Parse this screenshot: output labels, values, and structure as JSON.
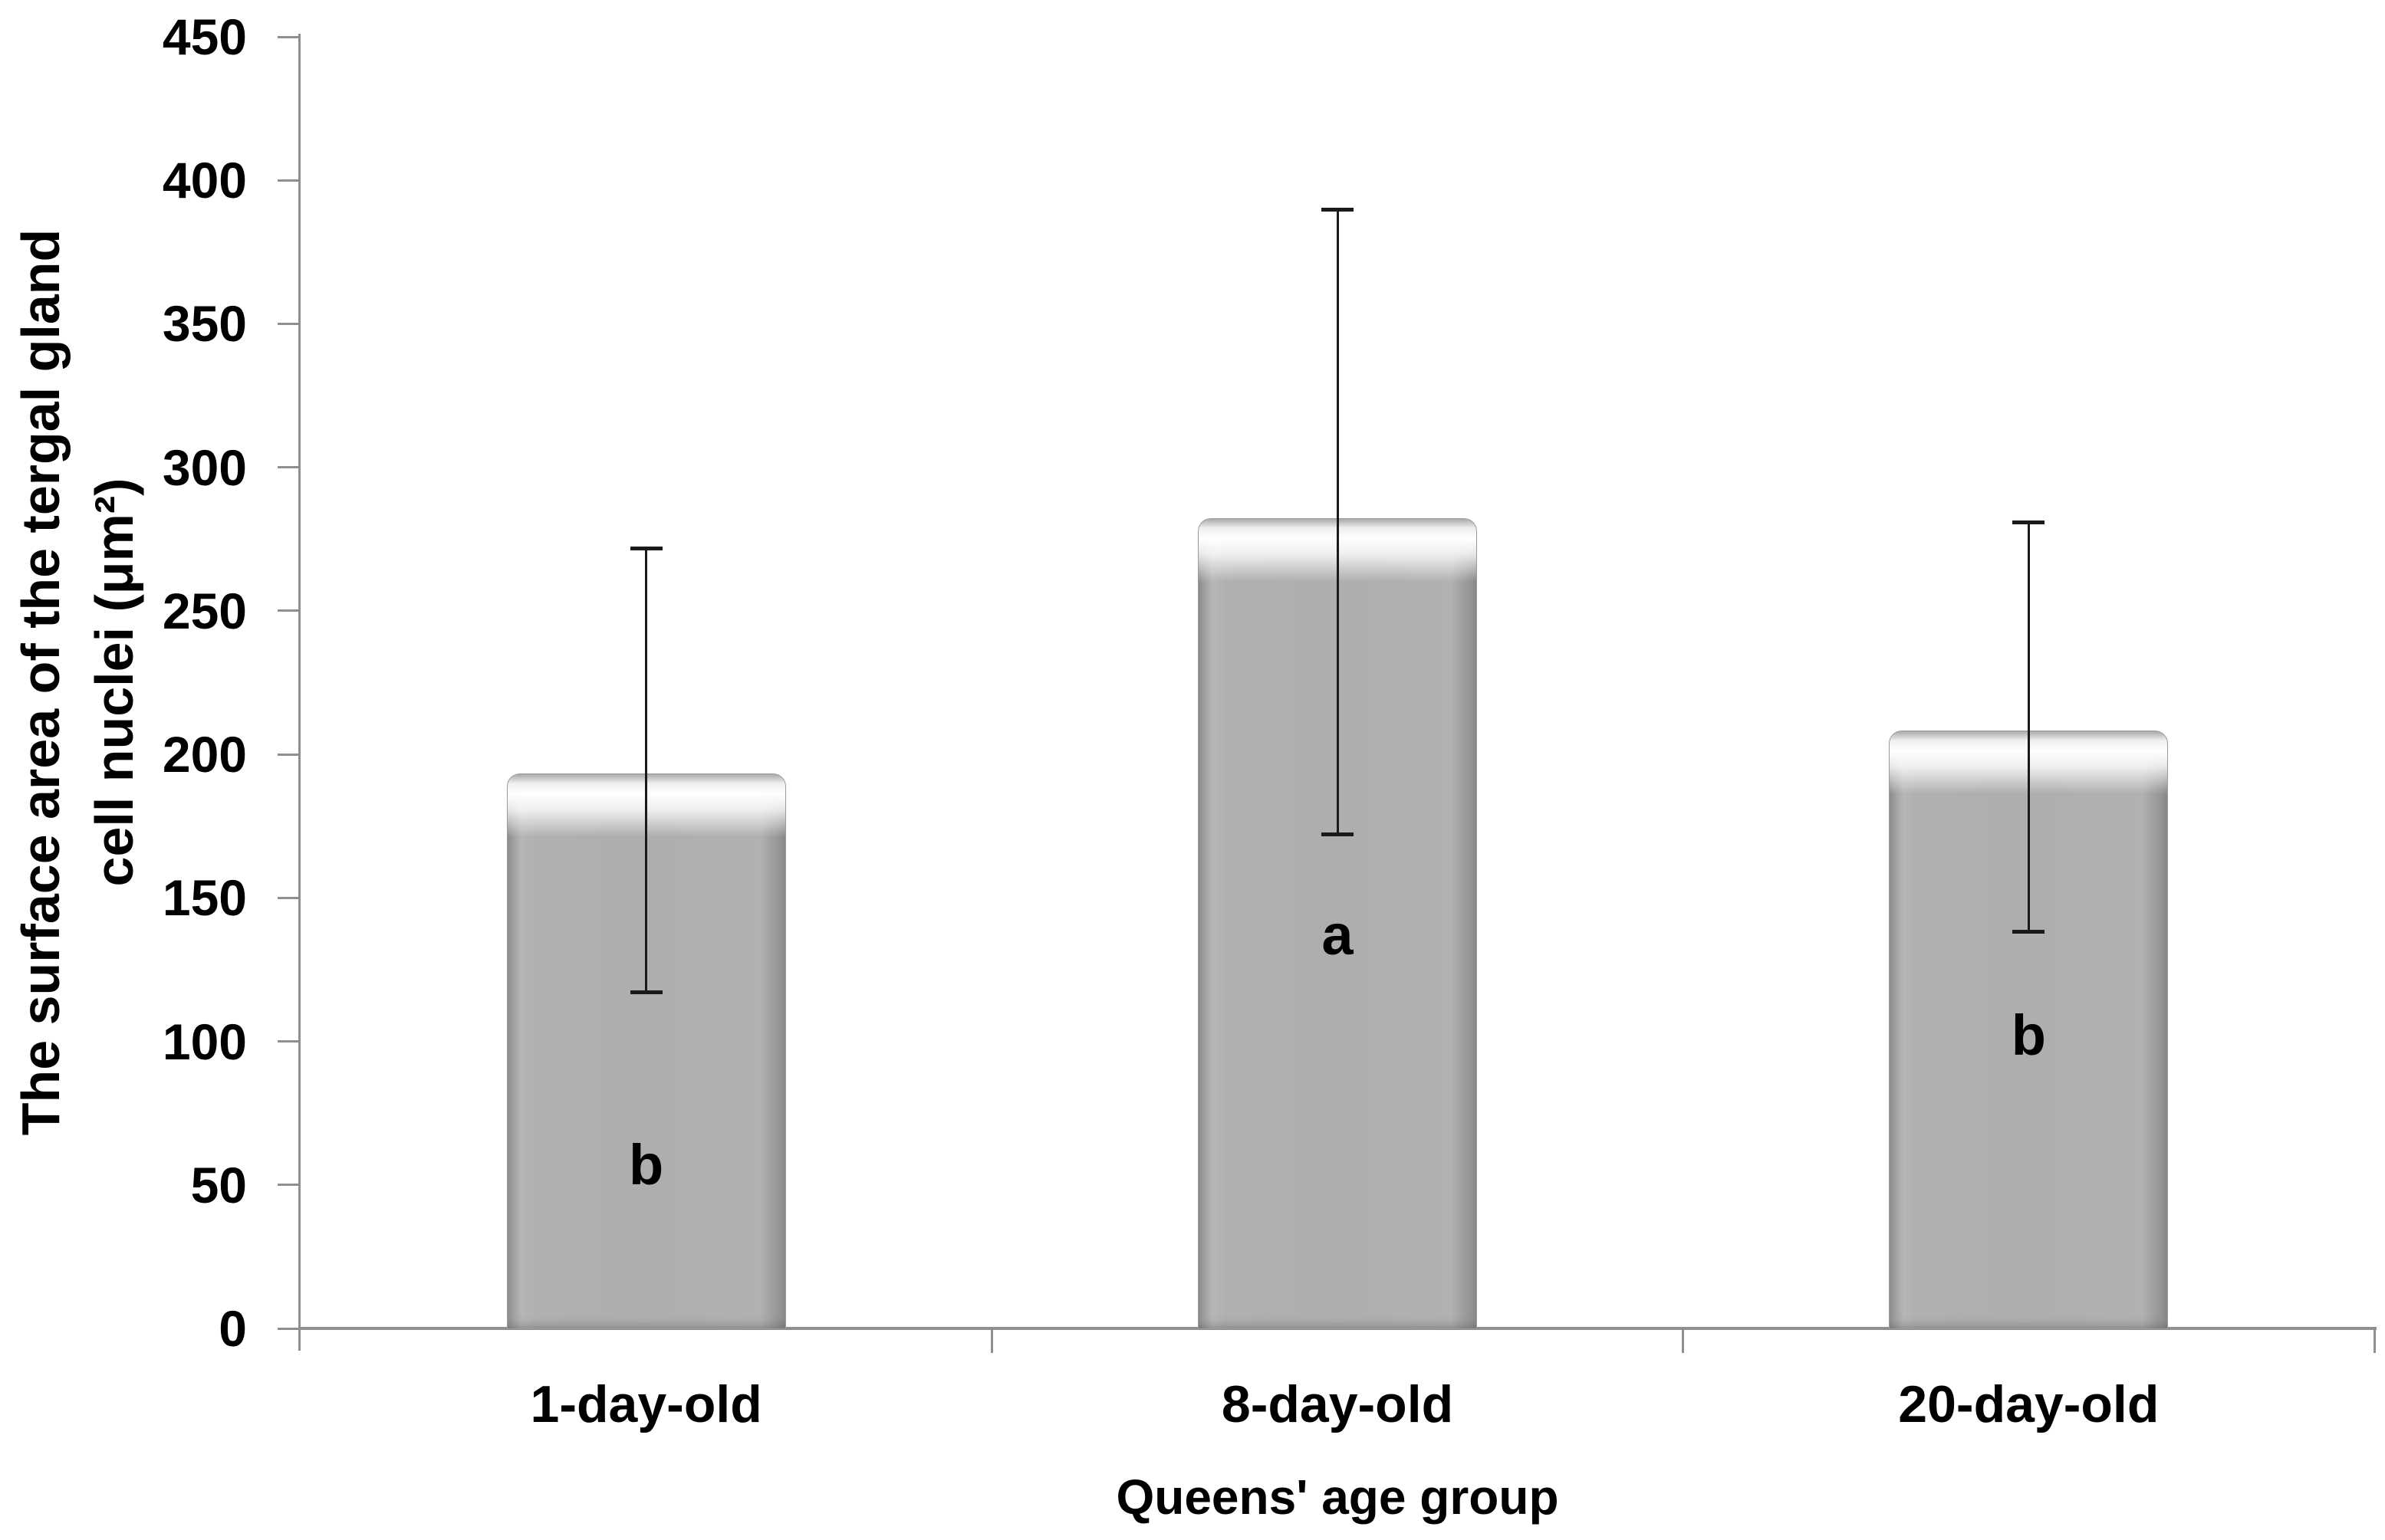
{
  "chart_data": {
    "type": "bar",
    "title": "",
    "xlabel": "Queens' age group",
    "ylabel_lines": [
      "The surface area of the tergal gland",
      "cell nuclei (μm²)"
    ],
    "categories": [
      "1-day-old",
      "8-day-old",
      "20-day-old"
    ],
    "values": [
      193,
      282,
      208
    ],
    "error_low": [
      117,
      172,
      138
    ],
    "error_high": [
      272,
      390,
      281
    ],
    "sig_letters": [
      "b",
      "a",
      "b"
    ],
    "sig_letter_y": [
      57,
      137,
      102
    ],
    "ylim": [
      0,
      450
    ],
    "yticks": [
      0,
      50,
      100,
      150,
      200,
      250,
      300,
      350,
      400,
      450
    ],
    "ytick_step": 50,
    "grid": false,
    "legend": null,
    "colors": {
      "bar_fill": "#aeaeae",
      "bar_edge": "#8f8f8f",
      "axis": "#8f8f8f",
      "text": "#000000",
      "error_bar": "#1a1a1a",
      "background": "#ffffff"
    }
  }
}
